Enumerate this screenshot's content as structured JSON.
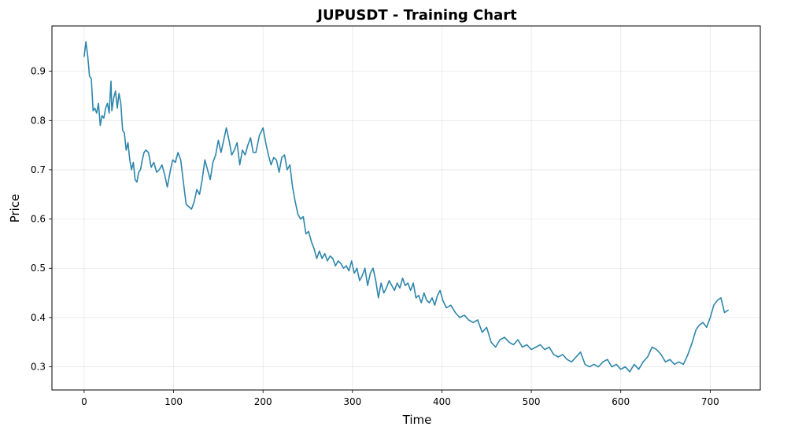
{
  "chart_data": {
    "type": "line",
    "title": "JUPUSDT - Training Chart",
    "xlabel": "Time",
    "ylabel": "Price",
    "xlim": [
      -36,
      756
    ],
    "ylim": [
      0.253,
      0.992
    ],
    "xticks": [
      0,
      100,
      200,
      300,
      400,
      500,
      600,
      700
    ],
    "yticks": [
      0.3,
      0.4,
      0.5,
      0.6,
      0.7,
      0.8,
      0.9
    ],
    "ytick_labels": [
      "0.3",
      "0.4",
      "0.5",
      "0.6",
      "0.7",
      "0.8",
      "0.9"
    ],
    "grid": true,
    "series": [
      {
        "color": "#2e86ab",
        "x": [
          0,
          2,
          4,
          6,
          8,
          10,
          12,
          14,
          16,
          18,
          20,
          22,
          24,
          26,
          28,
          30,
          31,
          33,
          35,
          37,
          39,
          41,
          43,
          45,
          47,
          49,
          51,
          53,
          55,
          57,
          59,
          61,
          63,
          65,
          67,
          69,
          72,
          75,
          78,
          81,
          84,
          87,
          90,
          93,
          96,
          99,
          102,
          105,
          108,
          111,
          114,
          117,
          120,
          123,
          126,
          129,
          132,
          135,
          138,
          141,
          144,
          147,
          150,
          153,
          156,
          159,
          162,
          165,
          168,
          171,
          174,
          177,
          180,
          183,
          186,
          189,
          192,
          196,
          200,
          203,
          206,
          209,
          212,
          215,
          218,
          221,
          224,
          227,
          230,
          233,
          236,
          239,
          242,
          245,
          248,
          251,
          254,
          257,
          260,
          263,
          266,
          269,
          272,
          275,
          278,
          281,
          284,
          287,
          290,
          293,
          296,
          299,
          302,
          305,
          308,
          311,
          314,
          317,
          320,
          323,
          326,
          329,
          332,
          335,
          338,
          341,
          344,
          347,
          350,
          353,
          356,
          359,
          362,
          365,
          368,
          371,
          374,
          377,
          380,
          383,
          386,
          389,
          392,
          395,
          398,
          401,
          405,
          410,
          415,
          420,
          425,
          430,
          435,
          440,
          445,
          450,
          455,
          460,
          465,
          470,
          475,
          480,
          485,
          490,
          495,
          500,
          505,
          510,
          515,
          520,
          525,
          530,
          535,
          540,
          545,
          550,
          555,
          560,
          565,
          570,
          575,
          580,
          585,
          590,
          595,
          600,
          605,
          610,
          615,
          620,
          625,
          630,
          635,
          640,
          645,
          650,
          655,
          660,
          665,
          670,
          675,
          680,
          684,
          688,
          692,
          696,
          700,
          704,
          708,
          712,
          716,
          720
        ],
        "y": [
          0.93,
          0.96,
          0.93,
          0.89,
          0.885,
          0.82,
          0.825,
          0.815,
          0.835,
          0.79,
          0.81,
          0.805,
          0.825,
          0.835,
          0.815,
          0.88,
          0.82,
          0.845,
          0.86,
          0.825,
          0.855,
          0.835,
          0.78,
          0.775,
          0.74,
          0.755,
          0.72,
          0.7,
          0.715,
          0.68,
          0.675,
          0.695,
          0.7,
          0.72,
          0.735,
          0.74,
          0.735,
          0.705,
          0.715,
          0.695,
          0.7,
          0.71,
          0.69,
          0.665,
          0.695,
          0.72,
          0.715,
          0.735,
          0.72,
          0.675,
          0.63,
          0.625,
          0.62,
          0.635,
          0.66,
          0.65,
          0.68,
          0.72,
          0.7,
          0.68,
          0.715,
          0.73,
          0.76,
          0.735,
          0.76,
          0.785,
          0.76,
          0.73,
          0.74,
          0.755,
          0.71,
          0.74,
          0.73,
          0.75,
          0.765,
          0.735,
          0.735,
          0.77,
          0.785,
          0.755,
          0.73,
          0.71,
          0.725,
          0.72,
          0.695,
          0.725,
          0.73,
          0.7,
          0.71,
          0.665,
          0.635,
          0.61,
          0.6,
          0.605,
          0.57,
          0.575,
          0.555,
          0.54,
          0.52,
          0.535,
          0.52,
          0.53,
          0.515,
          0.525,
          0.52,
          0.505,
          0.515,
          0.51,
          0.5,
          0.505,
          0.495,
          0.515,
          0.49,
          0.5,
          0.475,
          0.485,
          0.5,
          0.465,
          0.49,
          0.5,
          0.475,
          0.44,
          0.47,
          0.45,
          0.46,
          0.475,
          0.465,
          0.455,
          0.47,
          0.46,
          0.48,
          0.465,
          0.47,
          0.455,
          0.47,
          0.44,
          0.445,
          0.43,
          0.45,
          0.435,
          0.43,
          0.44,
          0.425,
          0.445,
          0.455,
          0.435,
          0.42,
          0.425,
          0.41,
          0.4,
          0.405,
          0.395,
          0.39,
          0.395,
          0.37,
          0.38,
          0.35,
          0.34,
          0.355,
          0.36,
          0.35,
          0.345,
          0.355,
          0.34,
          0.345,
          0.335,
          0.34,
          0.345,
          0.335,
          0.34,
          0.325,
          0.32,
          0.325,
          0.315,
          0.31,
          0.32,
          0.33,
          0.305,
          0.3,
          0.305,
          0.3,
          0.31,
          0.315,
          0.3,
          0.305,
          0.295,
          0.3,
          0.29,
          0.305,
          0.295,
          0.31,
          0.32,
          0.34,
          0.335,
          0.325,
          0.31,
          0.315,
          0.305,
          0.31,
          0.305,
          0.325,
          0.35,
          0.375,
          0.385,
          0.39,
          0.38,
          0.4,
          0.425,
          0.435,
          0.44,
          0.41,
          0.415
        ]
      }
    ]
  }
}
